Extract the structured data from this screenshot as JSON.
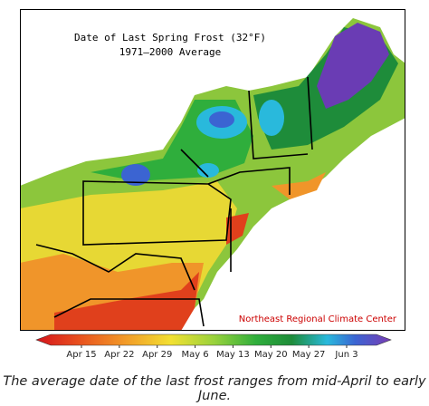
{
  "map": {
    "title": "Date of Last Spring Frost (32°F)",
    "subtitle": "1971–2000 Average",
    "credit": "Northeast Regional Climate Center"
  },
  "legend": {
    "labels": [
      "Apr 15",
      "Apr 22",
      "Apr 29",
      "May 6",
      "May 13",
      "May 20",
      "May 27",
      "Jun 3"
    ]
  },
  "caption": "The average date of the last frost ranges from mid-April to early June."
}
